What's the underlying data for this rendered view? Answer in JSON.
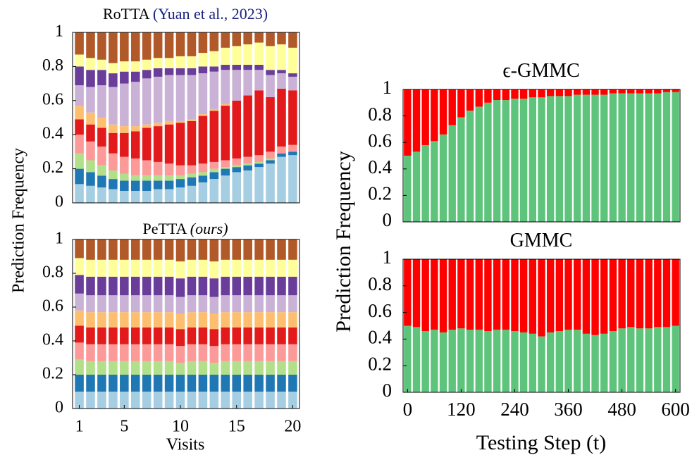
{
  "chart_data": [
    {
      "type": "bar",
      "stacked": true,
      "title": "RoTTA",
      "title_citation": "(Yuan et al., 2023)",
      "citation_color": "#1a237e",
      "ylabel": "Prediction Frequency",
      "x": [
        1,
        2,
        3,
        4,
        5,
        6,
        7,
        8,
        9,
        10,
        11,
        12,
        13,
        14,
        15,
        16,
        17,
        18,
        19,
        20
      ],
      "xlim": [
        0.4,
        20.6
      ],
      "ylim": [
        0,
        1
      ],
      "yticks": [
        0,
        0.2,
        0.4,
        0.6,
        0.8,
        1
      ],
      "series": [
        {
          "color": "#a6cee3",
          "values": [
            0.11,
            0.1,
            0.09,
            0.08,
            0.07,
            0.07,
            0.07,
            0.08,
            0.08,
            0.09,
            0.1,
            0.12,
            0.14,
            0.16,
            0.18,
            0.19,
            0.21,
            0.23,
            0.27,
            0.28
          ]
        },
        {
          "color": "#1f78b4",
          "values": [
            0.09,
            0.08,
            0.07,
            0.06,
            0.06,
            0.06,
            0.06,
            0.05,
            0.05,
            0.05,
            0.05,
            0.04,
            0.04,
            0.04,
            0.03,
            0.03,
            0.02,
            0.02,
            0.02,
            0.02
          ]
        },
        {
          "color": "#b2df8a",
          "values": [
            0.09,
            0.07,
            0.06,
            0.05,
            0.04,
            0.03,
            0.03,
            0.03,
            0.03,
            0.02,
            0.02,
            0.02,
            0.02,
            0.01,
            0.01,
            0.01,
            0.01,
            0.01,
            0,
            0
          ]
        },
        {
          "color": "#fb9a99",
          "values": [
            0.11,
            0.11,
            0.11,
            0.1,
            0.1,
            0.1,
            0.09,
            0.08,
            0.07,
            0.06,
            0.05,
            0.05,
            0.04,
            0.04,
            0.04,
            0.04,
            0.04,
            0.04,
            0.04,
            0.04
          ]
        },
        {
          "color": "#e31a1c",
          "values": [
            0.09,
            0.1,
            0.11,
            0.12,
            0.14,
            0.16,
            0.19,
            0.21,
            0.23,
            0.25,
            0.26,
            0.28,
            0.3,
            0.32,
            0.34,
            0.36,
            0.38,
            0.32,
            0.34,
            0.32
          ]
        },
        {
          "color": "#fdbf6f",
          "values": [
            0.08,
            0.07,
            0.06,
            0.05,
            0.04,
            0.03,
            0.02,
            0.02,
            0.02,
            0.01,
            0.01,
            0.01,
            0.01,
            0.01,
            0,
            0,
            0,
            0,
            0,
            0
          ]
        },
        {
          "color": "#cab2d6",
          "values": [
            0.12,
            0.15,
            0.19,
            0.22,
            0.25,
            0.26,
            0.27,
            0.27,
            0.27,
            0.27,
            0.26,
            0.24,
            0.22,
            0.2,
            0.18,
            0.15,
            0.12,
            0.13,
            0.09,
            0.08
          ]
        },
        {
          "color": "#6a3d9a",
          "values": [
            0.11,
            0.1,
            0.09,
            0.08,
            0.07,
            0.06,
            0.05,
            0.05,
            0.04,
            0.04,
            0.04,
            0.04,
            0.03,
            0.03,
            0.03,
            0.03,
            0.03,
            0.03,
            0.02,
            0.02
          ]
        },
        {
          "color": "#ffff99",
          "values": [
            0.07,
            0.07,
            0.06,
            0.06,
            0.06,
            0.06,
            0.06,
            0.06,
            0.06,
            0.07,
            0.07,
            0.08,
            0.09,
            0.1,
            0.11,
            0.12,
            0.13,
            0.14,
            0.15,
            0.15
          ]
        },
        {
          "color": "#b15928",
          "values": [
            0.13,
            0.15,
            0.16,
            0.18,
            0.17,
            0.17,
            0.16,
            0.15,
            0.15,
            0.14,
            0.14,
            0.12,
            0.11,
            0.09,
            0.08,
            0.07,
            0.06,
            0.08,
            0.07,
            0.09
          ]
        }
      ]
    },
    {
      "type": "bar",
      "stacked": true,
      "title": "PeTTA",
      "title_suffix": "(ours)",
      "xlabel": "Visits",
      "x": [
        1,
        2,
        3,
        4,
        5,
        6,
        7,
        8,
        9,
        10,
        11,
        12,
        13,
        14,
        15,
        16,
        17,
        18,
        19,
        20
      ],
      "xlim": [
        0.4,
        20.6
      ],
      "xticks": [
        1,
        5,
        10,
        15,
        20
      ],
      "ylim": [
        0,
        1
      ],
      "yticks": [
        0,
        0.2,
        0.4,
        0.6,
        0.8,
        1
      ],
      "series": [
        {
          "color": "#a6cee3",
          "values": [
            0.1,
            0.1,
            0.1,
            0.1,
            0.1,
            0.1,
            0.1,
            0.1,
            0.1,
            0.1,
            0.1,
            0.1,
            0.1,
            0.1,
            0.1,
            0.1,
            0.1,
            0.1,
            0.1,
            0.1
          ]
        },
        {
          "color": "#1f78b4",
          "values": [
            0.1,
            0.1,
            0.1,
            0.1,
            0.1,
            0.1,
            0.1,
            0.1,
            0.1,
            0.1,
            0.1,
            0.1,
            0.1,
            0.1,
            0.1,
            0.1,
            0.1,
            0.1,
            0.1,
            0.1
          ]
        },
        {
          "color": "#b2df8a",
          "values": [
            0.09,
            0.08,
            0.08,
            0.08,
            0.08,
            0.08,
            0.08,
            0.08,
            0.08,
            0.07,
            0.08,
            0.08,
            0.07,
            0.08,
            0.08,
            0.08,
            0.08,
            0.08,
            0.08,
            0.08
          ]
        },
        {
          "color": "#fb9a99",
          "values": [
            0.1,
            0.1,
            0.1,
            0.1,
            0.1,
            0.1,
            0.1,
            0.1,
            0.1,
            0.1,
            0.1,
            0.1,
            0.1,
            0.1,
            0.1,
            0.1,
            0.1,
            0.1,
            0.1,
            0.1
          ]
        },
        {
          "color": "#e31a1c",
          "values": [
            0.1,
            0.1,
            0.1,
            0.1,
            0.1,
            0.1,
            0.1,
            0.1,
            0.1,
            0.1,
            0.1,
            0.1,
            0.1,
            0.1,
            0.1,
            0.1,
            0.1,
            0.1,
            0.1,
            0.1
          ]
        },
        {
          "color": "#fdbf6f",
          "values": [
            0.09,
            0.09,
            0.09,
            0.09,
            0.09,
            0.09,
            0.09,
            0.09,
            0.09,
            0.09,
            0.09,
            0.09,
            0.09,
            0.09,
            0.09,
            0.09,
            0.09,
            0.09,
            0.09,
            0.09
          ]
        },
        {
          "color": "#cab2d6",
          "values": [
            0.1,
            0.1,
            0.1,
            0.1,
            0.1,
            0.1,
            0.1,
            0.1,
            0.1,
            0.1,
            0.1,
            0.1,
            0.1,
            0.1,
            0.1,
            0.1,
            0.1,
            0.1,
            0.1,
            0.1
          ]
        },
        {
          "color": "#6a3d9a",
          "values": [
            0.11,
            0.11,
            0.11,
            0.11,
            0.11,
            0.11,
            0.11,
            0.11,
            0.11,
            0.11,
            0.11,
            0.11,
            0.11,
            0.11,
            0.11,
            0.11,
            0.11,
            0.11,
            0.11,
            0.11
          ]
        },
        {
          "color": "#ffff99",
          "values": [
            0.1,
            0.1,
            0.1,
            0.1,
            0.1,
            0.1,
            0.1,
            0.1,
            0.1,
            0.1,
            0.1,
            0.1,
            0.1,
            0.1,
            0.1,
            0.1,
            0.1,
            0.1,
            0.1,
            0.1
          ]
        },
        {
          "color": "#b15928",
          "values": [
            0.11,
            0.12,
            0.12,
            0.12,
            0.12,
            0.12,
            0.12,
            0.12,
            0.12,
            0.13,
            0.12,
            0.12,
            0.13,
            0.12,
            0.12,
            0.12,
            0.12,
            0.12,
            0.12,
            0.12
          ]
        }
      ]
    },
    {
      "type": "bar",
      "stacked": true,
      "title": "ϵ-GMMC",
      "ylabel": "Prediction Frequency",
      "x": [
        0,
        20,
        40,
        60,
        80,
        100,
        120,
        140,
        160,
        180,
        200,
        220,
        240,
        260,
        280,
        300,
        320,
        340,
        360,
        380,
        400,
        420,
        440,
        460,
        480,
        500,
        520,
        540,
        560,
        580,
        600
      ],
      "xlim": [
        -10,
        610
      ],
      "ylim": [
        0,
        1
      ],
      "yticks": [
        0,
        0.2,
        0.4,
        0.6,
        0.8,
        1
      ],
      "series": [
        {
          "color": "#5ec47b",
          "values": [
            0.5,
            0.53,
            0.58,
            0.61,
            0.66,
            0.73,
            0.79,
            0.84,
            0.87,
            0.9,
            0.92,
            0.92,
            0.93,
            0.93,
            0.94,
            0.94,
            0.95,
            0.95,
            0.95,
            0.96,
            0.96,
            0.96,
            0.96,
            0.97,
            0.97,
            0.97,
            0.97,
            0.97,
            0.97,
            0.98,
            0.98
          ]
        },
        {
          "color": "#ff0000",
          "values": [
            0.5,
            0.47,
            0.42,
            0.39,
            0.34,
            0.27,
            0.21,
            0.16,
            0.13,
            0.1,
            0.08,
            0.08,
            0.07,
            0.07,
            0.06,
            0.06,
            0.05,
            0.05,
            0.05,
            0.04,
            0.04,
            0.04,
            0.04,
            0.03,
            0.03,
            0.03,
            0.03,
            0.03,
            0.03,
            0.02,
            0.02
          ]
        }
      ]
    },
    {
      "type": "bar",
      "stacked": true,
      "title": "GMMC",
      "xlabel": "Testing Step (t)",
      "x": [
        0,
        20,
        40,
        60,
        80,
        100,
        120,
        140,
        160,
        180,
        200,
        220,
        240,
        260,
        280,
        300,
        320,
        340,
        360,
        380,
        400,
        420,
        440,
        460,
        480,
        500,
        520,
        540,
        560,
        580,
        600
      ],
      "xlim": [
        -10,
        610
      ],
      "xticks": [
        0,
        120,
        240,
        360,
        480,
        600
      ],
      "ylim": [
        0,
        1
      ],
      "yticks": [
        0,
        0.2,
        0.4,
        0.6,
        0.8,
        1
      ],
      "series": [
        {
          "color": "#5ec47b",
          "values": [
            0.5,
            0.49,
            0.46,
            0.47,
            0.45,
            0.47,
            0.48,
            0.47,
            0.47,
            0.46,
            0.47,
            0.47,
            0.46,
            0.45,
            0.44,
            0.42,
            0.45,
            0.46,
            0.47,
            0.47,
            0.44,
            0.43,
            0.44,
            0.46,
            0.48,
            0.49,
            0.48,
            0.48,
            0.49,
            0.49,
            0.5
          ]
        },
        {
          "color": "#ff0000",
          "values": [
            0.5,
            0.51,
            0.54,
            0.53,
            0.55,
            0.53,
            0.52,
            0.53,
            0.53,
            0.54,
            0.53,
            0.53,
            0.54,
            0.55,
            0.56,
            0.58,
            0.55,
            0.54,
            0.53,
            0.53,
            0.56,
            0.57,
            0.56,
            0.54,
            0.52,
            0.51,
            0.52,
            0.52,
            0.51,
            0.51,
            0.5
          ]
        }
      ]
    }
  ]
}
